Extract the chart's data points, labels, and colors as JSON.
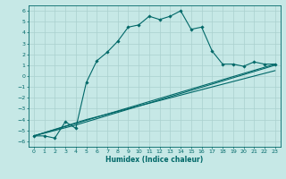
{
  "xlabel": "Humidex (Indice chaleur)",
  "ylabel": "",
  "xlim": [
    -0.5,
    23.5
  ],
  "ylim": [
    -6.5,
    6.5
  ],
  "xticks": [
    0,
    1,
    2,
    3,
    4,
    5,
    6,
    7,
    8,
    9,
    10,
    11,
    12,
    13,
    14,
    15,
    16,
    17,
    18,
    19,
    20,
    21,
    22,
    23
  ],
  "yticks": [
    -6,
    -5,
    -4,
    -3,
    -2,
    -1,
    0,
    1,
    2,
    3,
    4,
    5,
    6
  ],
  "background_color": "#c6e8e6",
  "grid_color": "#aad0ce",
  "line_color": "#006868",
  "line1_x": [
    0,
    1,
    2,
    3,
    4,
    5,
    6,
    7,
    8,
    9,
    10,
    11,
    12,
    13,
    14,
    15,
    16,
    17,
    18,
    19,
    20,
    21,
    22,
    23
  ],
  "line1_y": [
    -5.5,
    -5.5,
    -5.7,
    -4.2,
    -4.8,
    -0.6,
    1.4,
    2.2,
    3.2,
    4.5,
    4.7,
    5.5,
    5.2,
    5.5,
    6.0,
    4.3,
    4.5,
    2.3,
    1.1,
    1.1,
    0.9,
    1.3,
    1.1,
    1.1
  ],
  "line2_x": [
    0,
    23
  ],
  "line2_y": [
    -5.5,
    1.1
  ],
  "line3_x": [
    0,
    4,
    23
  ],
  "line3_y": [
    -5.5,
    -4.5,
    1.0
  ],
  "line4_x": [
    0,
    5,
    23
  ],
  "line4_y": [
    -5.5,
    -4.0,
    0.5
  ],
  "marker": "D",
  "markersize": 1.8,
  "linewidth": 0.8,
  "tick_fontsize": 4.5,
  "xlabel_fontsize": 5.5
}
